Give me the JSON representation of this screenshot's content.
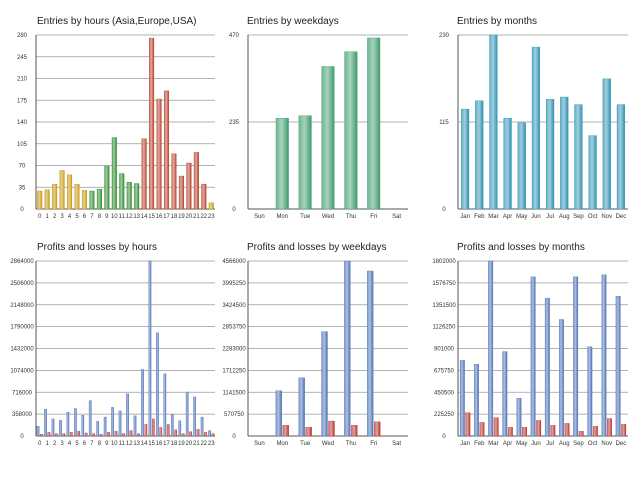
{
  "chart_data": [
    {
      "type": "bar",
      "title": "Entries by hours (Asia,Europe,USA)",
      "categories": [
        "0",
        "1",
        "2",
        "3",
        "4",
        "5",
        "6",
        "7",
        "8",
        "9",
        "10",
        "11",
        "12",
        "13",
        "14",
        "15",
        "16",
        "17",
        "18",
        "19",
        "20",
        "21",
        "22",
        "23"
      ],
      "values": [
        29,
        31,
        40,
        62,
        55,
        40,
        30,
        29,
        32,
        69,
        115,
        57,
        43,
        41,
        113,
        275,
        177,
        190,
        89,
        53,
        74,
        91,
        40,
        10
      ],
      "bar_colors": [
        "#c8960f",
        "#c8960f",
        "#c8960f",
        "#c8960f",
        "#c8960f",
        "#c8960f",
        "#c8960f",
        "#2e8b2e",
        "#2e8b2e",
        "#2e8b2e",
        "#2e8b2e",
        "#2e8b2e",
        "#2e8b2e",
        "#2e8b2e",
        "#b8402a",
        "#b8402a",
        "#b8402a",
        "#b8402a",
        "#b8402a",
        "#b8402a",
        "#b8402a",
        "#b8402a",
        "#b8402a",
        "#c8960f"
      ],
      "ylim": [
        0,
        280
      ],
      "yticks": [
        "0",
        "35",
        "70",
        "105",
        "140",
        "175",
        "210",
        "245",
        "280"
      ],
      "grid": true
    },
    {
      "type": "bar",
      "title": "Entries by weekdays",
      "categories": [
        "Sun",
        "Mon",
        "Tue",
        "Wed",
        "Thu",
        "Fri",
        "Sat"
      ],
      "values": [
        0,
        245,
        252,
        385,
        425,
        462,
        0
      ],
      "bar_color": "#3e9c6e",
      "ylim": [
        0,
        470
      ],
      "yticks": [
        "0",
        "235",
        "470"
      ],
      "grid": true
    },
    {
      "type": "bar",
      "title": "Entries by months",
      "categories": [
        "Jan",
        "Feb",
        "Mar",
        "Apr",
        "May",
        "Jun",
        "Jul",
        "Aug",
        "Sep",
        "Oct",
        "Nov",
        "Dec"
      ],
      "values": [
        132,
        143,
        230,
        120,
        114,
        214,
        145,
        148,
        138,
        97,
        172,
        138
      ],
      "bar_color": "#2f93b3",
      "ylim": [
        0,
        230
      ],
      "yticks": [
        "0",
        "115",
        "230"
      ],
      "grid": true
    },
    {
      "type": "bar",
      "title": "Profits and losses by hours",
      "categories": [
        "0",
        "1",
        "2",
        "3",
        "4",
        "5",
        "6",
        "7",
        "8",
        "9",
        "10",
        "11",
        "12",
        "13",
        "14",
        "15",
        "16",
        "17",
        "18",
        "19",
        "20",
        "21",
        "22",
        "23"
      ],
      "series": [
        {
          "color": "#4a6fb5",
          "values": [
            160000,
            440000,
            280000,
            260000,
            390000,
            450000,
            340000,
            580000,
            240000,
            310000,
            470000,
            410000,
            690000,
            330000,
            1090000,
            2864000,
            1690000,
            1020000,
            350000,
            250000,
            720000,
            640000,
            310000,
            90000
          ]
        },
        {
          "color": "#b8302a",
          "values": [
            30000,
            60000,
            40000,
            40000,
            60000,
            80000,
            50000,
            40000,
            30000,
            60000,
            80000,
            40000,
            90000,
            40000,
            190000,
            280000,
            140000,
            190000,
            100000,
            40000,
            70000,
            110000,
            60000,
            40000
          ]
        }
      ],
      "ylim": [
        0,
        2864000
      ],
      "yticks": [
        "0",
        "358000",
        "716000",
        "1074000",
        "1432000",
        "1790000",
        "2148000",
        "2506000",
        "2864000"
      ],
      "grid": true
    },
    {
      "type": "bar",
      "title": "Profits and losses by weekdays",
      "categories": [
        "Sun",
        "Mon",
        "Tue",
        "Wed",
        "Thu",
        "Fri",
        "Sat"
      ],
      "series": [
        {
          "color": "#4a6fb5",
          "values": [
            0,
            1180000,
            1520000,
            2720000,
            4560000,
            4300000,
            0
          ]
        },
        {
          "color": "#b8302a",
          "values": [
            0,
            280000,
            230000,
            390000,
            280000,
            370000,
            0
          ]
        }
      ],
      "ylim": [
        0,
        4560000
      ],
      "yticks": [
        "0",
        "570750",
        "1141500",
        "1712250",
        "2283000",
        "2853750",
        "3424500",
        "3995250",
        "4566000"
      ],
      "grid": true
    },
    {
      "type": "bar",
      "title": "Profits and losses by months",
      "categories": [
        "Jan",
        "Feb",
        "Mar",
        "Apr",
        "May",
        "Jun",
        "Jul",
        "Aug",
        "Sep",
        "Oct",
        "Nov",
        "Dec"
      ],
      "series": [
        {
          "color": "#4a6fb5",
          "values": [
            780000,
            740000,
            1802000,
            870000,
            390000,
            1640000,
            1420000,
            1200000,
            1640000,
            920000,
            1660000,
            1440000
          ]
        },
        {
          "color": "#b8302a",
          "values": [
            240000,
            140000,
            190000,
            90000,
            90000,
            160000,
            110000,
            130000,
            50000,
            100000,
            180000,
            120000
          ]
        }
      ],
      "ylim": [
        0,
        1802000
      ],
      "yticks": [
        "0",
        "225250",
        "450500",
        "675750",
        "901000",
        "1126250",
        "1351500",
        "1576750",
        "1802000"
      ],
      "grid": true
    }
  ]
}
